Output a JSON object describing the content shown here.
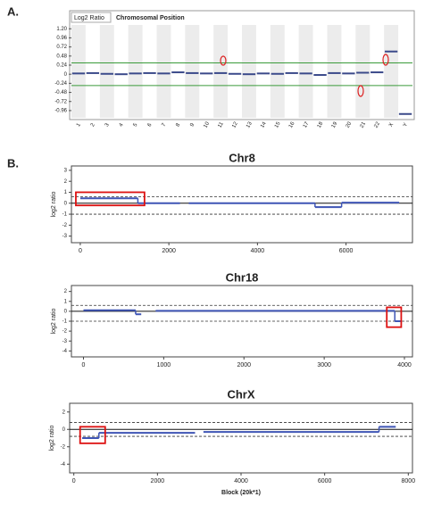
{
  "panel_labels": [
    "A.",
    "B."
  ],
  "chart_data": [
    {
      "type": "bar",
      "header": [
        "Log2 Ratio",
        "Chromosomal Position"
      ],
      "categories": [
        "1",
        "2",
        "3",
        "4",
        "5",
        "6",
        "7",
        "8",
        "9",
        "10",
        "11",
        "12",
        "13",
        "14",
        "15",
        "16",
        "17",
        "18",
        "19",
        "20",
        "21",
        "22",
        "X",
        "Y"
      ],
      "values": [
        0.02,
        0.03,
        0.01,
        0.0,
        0.02,
        0.03,
        0.02,
        0.05,
        0.03,
        0.02,
        0.03,
        0.01,
        0.0,
        0.02,
        0.01,
        0.03,
        0.02,
        -0.02,
        0.03,
        0.02,
        0.04,
        0.05,
        0.6,
        -1.05
      ],
      "color": "#3b4a8a",
      "threshold_color": "#3a9a3a",
      "thresholds": [
        0.3,
        -0.3
      ],
      "ylim": [
        -1.15,
        1.3
      ],
      "yticks": [
        {
          "value": 1.2,
          "label": "1.20"
        },
        0.96,
        0.72,
        0.48,
        0.24,
        0,
        -0.24,
        -0.48,
        -0.72,
        -0.96
      ]
    },
    {
      "type": "step",
      "title": "Chr8",
      "ylabel": "log2 ratio",
      "color": "#3f55b5",
      "segments": [
        {
          "start": 0,
          "end": 1300,
          "value": 0.45
        },
        {
          "start": 1300,
          "end": 2250,
          "value": 0.0
        },
        {
          "start": 2450,
          "end": 5300,
          "value": 0.0
        },
        {
          "start": 5300,
          "end": 5900,
          "value": -0.35
        },
        {
          "start": 5900,
          "end": 7200,
          "value": 0.05
        }
      ],
      "reference_lines": [
        0.6,
        -1.0
      ],
      "boxes": [
        {
          "start": -100,
          "end": 1450,
          "low": -0.2,
          "high": 1.0
        }
      ],
      "xlim": [
        -200,
        7500
      ],
      "xticks": [
        0,
        2000,
        4000,
        6000
      ],
      "ylim": [
        -3.6,
        3.4
      ],
      "yticks": [
        3,
        2,
        1,
        0,
        -1,
        -2,
        -3
      ]
    },
    {
      "type": "step",
      "title": "Chr18",
      "ylabel": "log2 ratio",
      "color": "#3f55b5",
      "segments": [
        {
          "start": 0,
          "end": 650,
          "value": 0.1
        },
        {
          "start": 650,
          "end": 720,
          "value": -0.3
        },
        {
          "start": 900,
          "end": 3880,
          "value": 0.05
        },
        {
          "start": 3880,
          "end": 3950,
          "value": -1.0
        }
      ],
      "reference_lines": [
        0.6,
        -1.0
      ],
      "boxes": [
        {
          "start": 3780,
          "end": 3960,
          "low": -1.6,
          "high": 0.4
        }
      ],
      "xlim": [
        -150,
        4100
      ],
      "xticks": [
        0,
        1000,
        2000,
        3000,
        4000
      ],
      "ylim": [
        -4.6,
        2.6
      ],
      "yticks": [
        2,
        1,
        0,
        -1,
        -2,
        -3,
        -4
      ]
    },
    {
      "type": "step",
      "title": "ChrX",
      "ylabel": "log2 ratio",
      "xlabel": "Block (20k*1)",
      "color": "#3f55b5",
      "segments": [
        {
          "start": 200,
          "end": 600,
          "value": -1.0
        },
        {
          "start": 600,
          "end": 2900,
          "value": -0.4
        },
        {
          "start": 3100,
          "end": 7300,
          "value": -0.3
        },
        {
          "start": 7300,
          "end": 7700,
          "value": 0.3
        }
      ],
      "reference_lines": [
        0.8,
        -0.8
      ],
      "boxes": [
        {
          "start": 150,
          "end": 750,
          "low": -1.6,
          "high": 0.3
        }
      ],
      "xlim": [
        -100,
        8100
      ],
      "xticks": [
        0,
        2000,
        4000,
        6000,
        8000
      ],
      "ylim": [
        -5,
        3
      ],
      "yticks": [
        2,
        0,
        -2,
        -4
      ]
    }
  ]
}
